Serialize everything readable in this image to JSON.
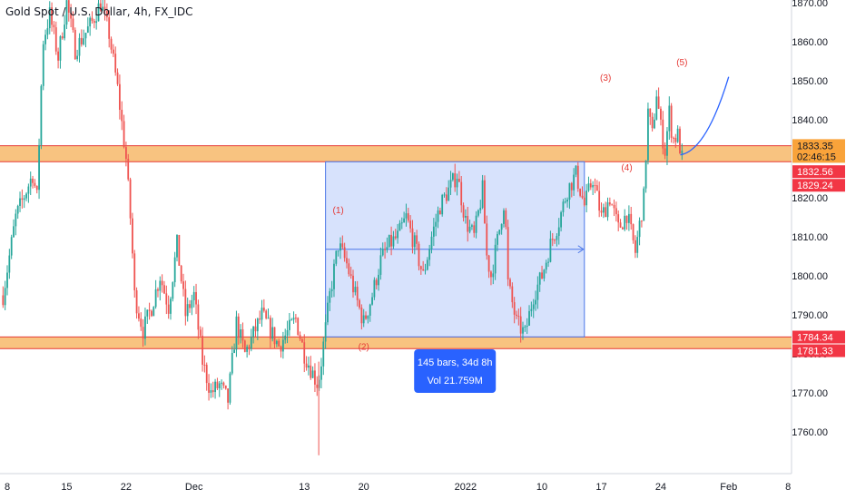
{
  "header": {
    "title": "Gold Spot / U.S. Dollar, 4h, FX_IDC"
  },
  "colors": {
    "up": "#26a69a",
    "down": "#ef5350",
    "zone_fill": "#f7b86a",
    "zone_border": "#e53935",
    "measure_fill": "#c9d8fb",
    "measure_border": "#4a76e8",
    "wave_label": "#e53935",
    "projection": "#2962ff",
    "tag_orange": "#f9a33a",
    "tag_red": "#f23645",
    "tooltip": "#2962ff"
  },
  "chart_data": {
    "type": "candlestick",
    "title": "Gold Spot / U.S. Dollar, 4h, FX_IDC",
    "ylim": [
      1750,
      1872
    ],
    "y_ticks": [
      1760,
      1770,
      1780,
      1790,
      1800,
      1810,
      1820,
      1830,
      1840,
      1850,
      1860,
      1870
    ],
    "y_tick_labels": [
      "1760.00",
      "1770.00",
      "1780.00",
      "1790.00",
      "1800.00",
      "1810.00",
      "1820.00",
      "1830.00",
      "1840.00",
      "1850.00",
      "1860.00",
      "1870.00"
    ],
    "x_ticks": [
      {
        "label": "8",
        "day": 0
      },
      {
        "label": "15",
        "day": 7
      },
      {
        "label": "22",
        "day": 14
      },
      {
        "label": "Dec",
        "day": 22
      },
      {
        "label": "13",
        "day": 35
      },
      {
        "label": "20",
        "day": 42
      },
      {
        "label": "2022",
        "day": 54
      },
      {
        "label": "10",
        "day": 63
      },
      {
        "label": "17",
        "day": 70
      },
      {
        "label": "24",
        "day": 77
      },
      {
        "label": "Feb",
        "day": 85
      },
      {
        "label": "8",
        "day": 92
      }
    ],
    "price_path": [
      [
        -0.5,
        1795
      ],
      [
        1,
        1815
      ],
      [
        3,
        1826
      ],
      [
        3.5,
        1820
      ],
      [
        4.2,
        1860
      ],
      [
        5,
        1867
      ],
      [
        6,
        1856
      ],
      [
        7,
        1870
      ],
      [
        8,
        1858
      ],
      [
        10,
        1865
      ],
      [
        11,
        1870
      ],
      [
        12,
        1862
      ],
      [
        13,
        1848
      ],
      [
        14,
        1830
      ],
      [
        14.6,
        1812
      ],
      [
        15,
        1795
      ],
      [
        16,
        1786
      ],
      [
        17,
        1792
      ],
      [
        18,
        1800
      ],
      [
        19,
        1792
      ],
      [
        20,
        1808
      ],
      [
        21,
        1790
      ],
      [
        22,
        1795
      ],
      [
        23,
        1778
      ],
      [
        24,
        1770
      ],
      [
        25,
        1772
      ],
      [
        26,
        1768
      ],
      [
        27,
        1788
      ],
      [
        28,
        1780
      ],
      [
        30,
        1790
      ],
      [
        32,
        1782
      ],
      [
        34,
        1789
      ],
      [
        35,
        1780
      ],
      [
        36,
        1775
      ],
      [
        36.6,
        1772
      ],
      [
        37,
        1778
      ],
      [
        38,
        1795
      ],
      [
        39,
        1808
      ],
      [
        40,
        1803
      ],
      [
        41,
        1795
      ],
      [
        42,
        1788
      ],
      [
        43,
        1795
      ],
      [
        44,
        1804
      ],
      [
        45,
        1808
      ],
      [
        46,
        1810
      ],
      [
        47,
        1815
      ],
      [
        48,
        1808
      ],
      [
        49,
        1800
      ],
      [
        50,
        1810
      ],
      [
        51,
        1818
      ],
      [
        52,
        1822
      ],
      [
        53,
        1826
      ],
      [
        54,
        1814
      ],
      [
        55,
        1810
      ],
      [
        56,
        1822
      ],
      [
        56.5,
        1805
      ],
      [
        57,
        1800
      ],
      [
        58,
        1812
      ],
      [
        58.6,
        1820
      ],
      [
        59,
        1798
      ],
      [
        60,
        1788
      ],
      [
        61,
        1785
      ],
      [
        62,
        1795
      ],
      [
        63,
        1800
      ],
      [
        64,
        1808
      ],
      [
        65,
        1814
      ],
      [
        66,
        1822
      ],
      [
        67,
        1826
      ],
      [
        68,
        1818
      ],
      [
        69,
        1825
      ],
      [
        70,
        1815
      ],
      [
        71,
        1820
      ],
      [
        72,
        1812
      ],
      [
        73,
        1816
      ],
      [
        74,
        1806
      ],
      [
        75,
        1820
      ],
      [
        75.5,
        1842
      ],
      [
        76,
        1836
      ],
      [
        76.5,
        1847
      ],
      [
        77,
        1838
      ],
      [
        77.5,
        1832
      ],
      [
        78,
        1842
      ],
      [
        78.4,
        1835
      ],
      [
        79,
        1836
      ],
      [
        79.5,
        1830
      ]
    ],
    "projection_points": [
      [
        79.3,
        1831
      ],
      [
        81,
        1833
      ],
      [
        83,
        1838
      ],
      [
        85,
        1851
      ]
    ],
    "zones": [
      {
        "name": "upper-zone",
        "top": 1833.35,
        "bottom": 1829.24
      },
      {
        "name": "lower-zone",
        "top": 1784.34,
        "bottom": 1781.33
      }
    ],
    "measure_box": {
      "x0_day": 37.5,
      "x1_day": 68,
      "top": 1829.24,
      "bottom": 1784.34,
      "mid": 1806.8
    },
    "measure_tooltip": {
      "line1": "145 bars, 34d 8h",
      "line2": "Vol 21.759M"
    },
    "wave_labels": [
      {
        "text": "(1)",
        "day": 39,
        "price": 1816
      },
      {
        "text": "(2)",
        "day": 42,
        "price": 1781
      },
      {
        "text": "(3)",
        "day": 70.5,
        "price": 1850
      },
      {
        "text": "(4)",
        "day": 73,
        "price": 1827
      },
      {
        "text": "(5)",
        "day": 79.5,
        "price": 1854
      }
    ],
    "price_tags": [
      {
        "text": "1833.35",
        "price": 1833.4,
        "color": "orange",
        "dark_text": true
      },
      {
        "text": "02:46:15",
        "price": 1830.6,
        "color": "orange",
        "dark_text": true
      },
      {
        "text": "1832.56",
        "price": 1826.7,
        "color": "red",
        "dark_text": false
      },
      {
        "text": "1829.24",
        "price": 1823.2,
        "color": "red",
        "dark_text": false
      },
      {
        "text": "1784.34",
        "price": 1784.3,
        "color": "red",
        "dark_text": false
      },
      {
        "text": "1781.33",
        "price": 1780.8,
        "color": "red",
        "dark_text": false
      }
    ]
  }
}
